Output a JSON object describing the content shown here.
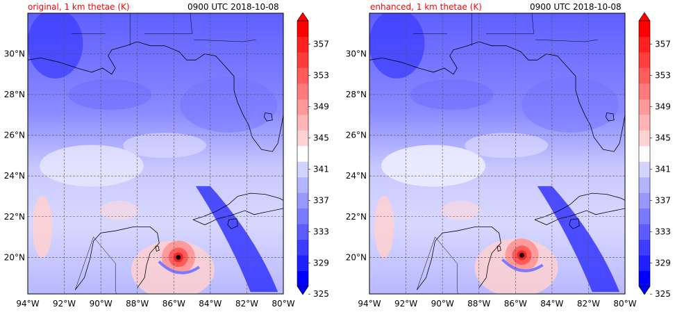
{
  "panels": [
    {
      "name": "original",
      "title_left": "original, 1 km thetae (K)",
      "title_right": "0900 UTC 2018-10-08",
      "storm_center": {
        "lon": -85.75,
        "lat": 20.0
      }
    },
    {
      "name": "enhanced",
      "title_left": "enhanced, 1 km thetae (K)",
      "title_right": "0900 UTC 2018-10-08",
      "storm_center": {
        "lon": -85.65,
        "lat": 20.1
      }
    }
  ],
  "map": {
    "lon_range": [
      -94,
      -80
    ],
    "lat_range": [
      18.2,
      32
    ],
    "lon_ticks": [
      "94°W",
      "92°W",
      "90°W",
      "88°W",
      "86°W",
      "84°W",
      "82°W",
      "80°W"
    ],
    "lat_ticks": [
      "20°N",
      "22°N",
      "24°N",
      "26°N",
      "28°N",
      "30°N"
    ],
    "gridlines": true
  },
  "colorbar": {
    "variable": "thetae (K)",
    "labels": [
      "325",
      "329",
      "333",
      "337",
      "341",
      "345",
      "349",
      "353",
      "357"
    ],
    "levels": [
      325,
      327,
      329,
      331,
      333,
      335,
      337,
      339,
      341,
      343,
      345,
      347,
      349,
      351,
      353,
      355,
      357,
      359
    ],
    "colors": [
      "#0000ff",
      "#2020ff",
      "#3d3dff",
      "#5c5cff",
      "#7a7aff",
      "#9898ff",
      "#b5b5ff",
      "#d3d3ff",
      "#ffffff",
      "#ffd3d3",
      "#ffb5b5",
      "#ff9898",
      "#ff7a7a",
      "#ff5c5c",
      "#ff3d3d",
      "#ff2020",
      "#ff0000"
    ],
    "extend": "both"
  }
}
